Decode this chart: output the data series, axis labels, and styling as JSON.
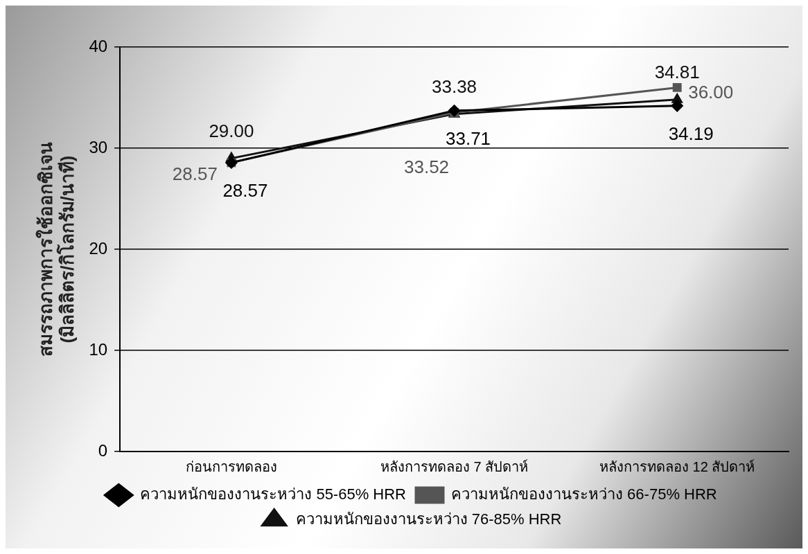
{
  "chart_data": {
    "type": "line",
    "ylabel": "สมรรถภาพการใช้ออกซิเจน\n(มิลลิลิตร/กิโลกรัม/นาที)",
    "categories": [
      "ก่อนการทดลอง",
      "หลังการทดลอง 7 สัปดาห์",
      "หลังการทดลอง 12 สัปดาห์"
    ],
    "series": [
      {
        "name": "ความหนักของงานระหว่าง 55-65% HRR",
        "color": "#000000",
        "marker": "diamond",
        "values": [
          28.57,
          33.71,
          34.19
        ],
        "value_labels": [
          "28.57",
          "33.71",
          "34.19"
        ]
      },
      {
        "name": "ความหนักของงานระหว่าง 66-75% HRR",
        "color": "#555555",
        "marker": "square",
        "values": [
          28.57,
          33.52,
          36.0
        ],
        "value_labels": [
          "28.57",
          "33.52",
          "36.00"
        ]
      },
      {
        "name": "ความหนักของงานระหว่าง 76-85% HRR",
        "color": "#111111",
        "marker": "triangle",
        "values": [
          29.0,
          33.38,
          34.81
        ],
        "value_labels": [
          "29.00",
          "33.38",
          "34.81"
        ]
      }
    ],
    "ylim": [
      0,
      40
    ],
    "yticks": [
      0,
      10,
      20,
      30,
      40
    ],
    "grid": "y",
    "legend": "bottom"
  }
}
